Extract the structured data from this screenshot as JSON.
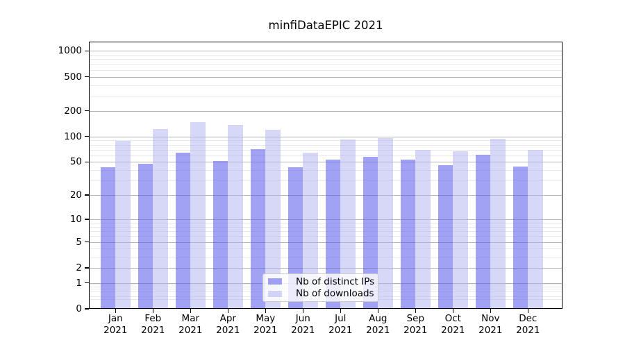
{
  "chart_data": {
    "type": "bar",
    "title": "minfiDataEPIC 2021",
    "categories": [
      "Jan",
      "Feb",
      "Mar",
      "Apr",
      "May",
      "Jun",
      "Jul",
      "Aug",
      "Sep",
      "Oct",
      "Nov",
      "Dec"
    ],
    "x_year_label": "2021",
    "series": [
      {
        "name": "Nb of distinct IPs",
        "color": "rgba(95,95,238,0.58)",
        "values": [
          43,
          48,
          65,
          51,
          71,
          43,
          53,
          58,
          53,
          46,
          61,
          44
        ]
      },
      {
        "name": "Nb of downloads",
        "color": "rgba(175,175,242,0.50)",
        "values": [
          89,
          122,
          148,
          137,
          120,
          65,
          92,
          95,
          69,
          67,
          94,
          70
        ]
      }
    ],
    "yscale": "log1p",
    "yticks": [
      0,
      1,
      2,
      5,
      10,
      20,
      50,
      100,
      200,
      500,
      1000
    ],
    "ylim": [
      0,
      1282
    ],
    "grid": true,
    "legend_position": "lower-center",
    "colors": {
      "major_grid": "#b4b4b4",
      "minor_grid": "#e9e9ec",
      "spine": "#000000",
      "background": "#ffffff"
    }
  }
}
